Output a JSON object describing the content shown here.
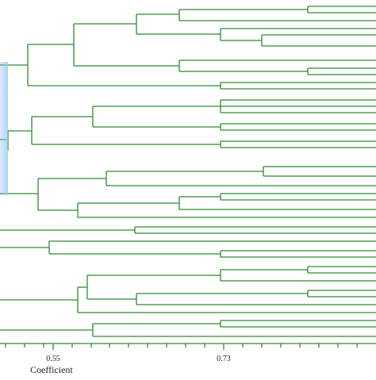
{
  "colors": {
    "branch": "#2e8a2e",
    "highlight": "#3f78c8",
    "axis": "#555555"
  },
  "axis": {
    "title": "Coefficient",
    "tick_labels": [
      "0.55",
      "0.73"
    ]
  }
}
